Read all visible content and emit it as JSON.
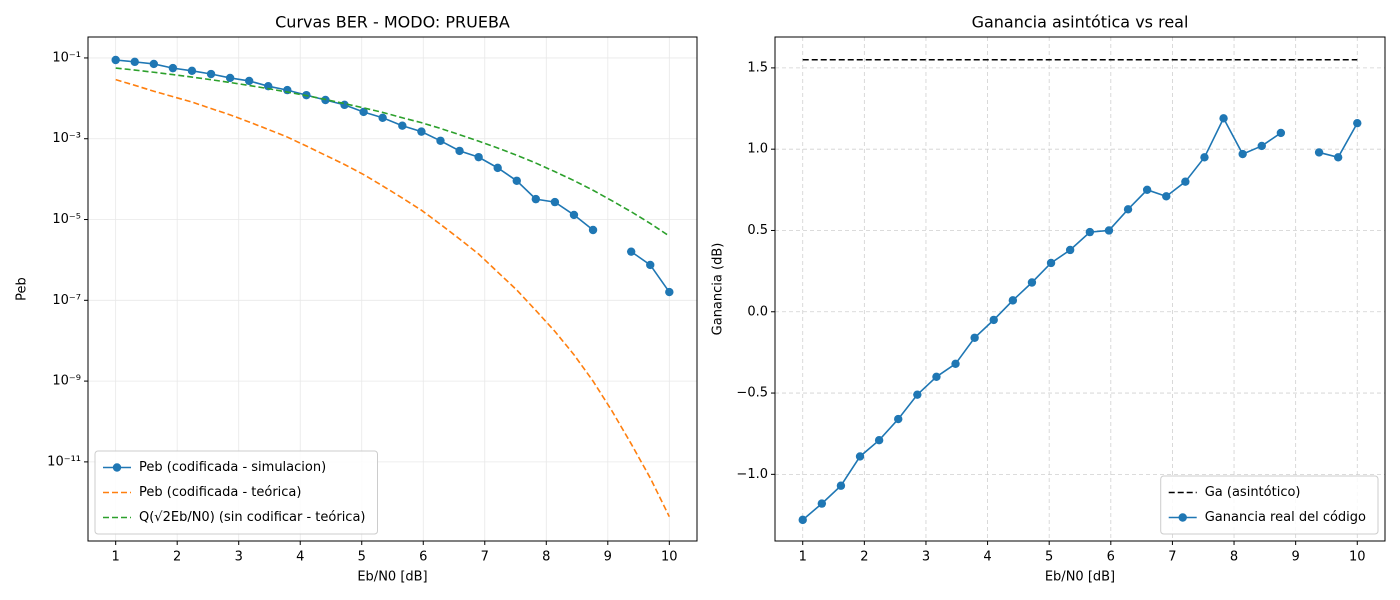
{
  "chart_data": [
    {
      "type": "line",
      "title": "Curvas BER - MODO: PRUEBA",
      "x_label": "Eb/N0 [dB]",
      "y_label": "Peb",
      "yscale": "log",
      "grid": true,
      "grid_style": "solid",
      "legend": "lower left",
      "xlim": [
        0.55,
        10.45
      ],
      "ylim": [
        1.1e-13,
        0.33
      ],
      "xticks": [
        1,
        2,
        3,
        4,
        5,
        6,
        7,
        8,
        9,
        10
      ],
      "yticks": [
        {
          "value": 0.1,
          "label": "10⁻¹"
        },
        {
          "value": 0.001,
          "label": "10⁻³"
        },
        {
          "value": 1e-05,
          "label": "10⁻⁵"
        },
        {
          "value": 1e-07,
          "label": "10⁻⁷"
        },
        {
          "value": 1e-09,
          "label": "10⁻⁹"
        },
        {
          "value": 1e-11,
          "label": "10⁻¹¹"
        }
      ],
      "x": [
        1,
        1.31,
        1.62,
        1.93,
        2.24,
        2.55,
        2.86,
        3.17,
        3.48,
        3.79,
        4.1,
        4.41,
        4.72,
        5.03,
        5.34,
        5.66,
        5.97,
        6.28,
        6.59,
        6.9,
        7.21,
        7.52,
        7.83,
        8.14,
        8.45,
        8.76,
        9.07,
        9.38,
        9.69,
        10
      ],
      "series": [
        {
          "name": "Peb (codificada - simulacion)",
          "color": "#1f77b4",
          "linestyle": "solid",
          "marker": "o",
          "values": [
            0.089,
            0.08,
            0.071,
            0.056,
            0.048,
            0.04,
            0.032,
            0.027,
            0.02,
            0.016,
            0.012,
            0.0091,
            0.0069,
            0.0046,
            0.0033,
            0.0021,
            0.0015,
            0.00089,
            0.0005,
            0.00035,
            0.00019,
            9.1e-05,
            3.2e-05,
            2.7e-05,
            1.3e-05,
            5.5e-06,
            null,
            1.6e-06,
            7.5e-07,
            1.6e-07
          ]
        },
        {
          "name": "Peb (codificada - teórica)",
          "color": "#ff7f0e",
          "linestyle": "dashed",
          "values": [
            0.029,
            0.021,
            0.015,
            0.011,
            0.0081,
            0.0056,
            0.0039,
            0.0026,
            0.0017,
            0.0011,
            0.00066,
            0.00039,
            0.00023,
            0.00013,
            6.8e-05,
            3.4e-05,
            1.7e-05,
            7.6e-06,
            3.3e-06,
            1.4e-06,
            5e-07,
            1.8e-07,
            5.6e-08,
            1.7e-08,
            4.5e-09,
            1e-09,
            1.8e-10,
            2.8e-11,
            4e-12,
            4.4e-13
          ]
        },
        {
          "name": "Q(√2Eb/N0) (sin codificar - teórica)",
          "color": "#2ca02c",
          "linestyle": "dashed",
          "values": [
            0.0563,
            0.0501,
            0.0442,
            0.0387,
            0.0336,
            0.0289,
            0.0247,
            0.0208,
            0.0174,
            0.0143,
            0.0117,
            0.0094,
            0.0074,
            0.0058,
            0.0045,
            0.0033,
            0.0025,
            0.0018,
            0.00126,
            0.00087,
            0.00059,
            0.00039,
            0.00025,
            0.000153,
            9.2e-05,
            5.3e-05,
            2.9e-05,
            1.56e-05,
            8e-06,
            3.9e-06
          ]
        }
      ]
    },
    {
      "type": "line",
      "title": "Ganancia asintótica vs real",
      "x_label": "Eb/N0 [dB]",
      "y_label": "Ganancia (dB)",
      "yscale": "linear",
      "grid": true,
      "grid_style": "dashed",
      "legend": "lower right",
      "xlim": [
        0.55,
        10.45
      ],
      "ylim": [
        -1.41,
        1.69
      ],
      "xticks": [
        1,
        2,
        3,
        4,
        5,
        6,
        7,
        8,
        9,
        10
      ],
      "yticks": [
        {
          "value": -1.0,
          "label": "−1.0"
        },
        {
          "value": -0.5,
          "label": "−0.5"
        },
        {
          "value": 0.0,
          "label": "0.0"
        },
        {
          "value": 0.5,
          "label": "0.5"
        },
        {
          "value": 1.0,
          "label": "1.0"
        },
        {
          "value": 1.5,
          "label": "1.5"
        }
      ],
      "x": [
        1,
        1.31,
        1.62,
        1.93,
        2.24,
        2.55,
        2.86,
        3.17,
        3.48,
        3.79,
        4.1,
        4.41,
        4.72,
        5.03,
        5.34,
        5.66,
        5.97,
        6.28,
        6.59,
        6.9,
        7.21,
        7.52,
        7.83,
        8.14,
        8.45,
        8.76,
        9.07,
        9.38,
        9.69,
        10
      ],
      "series": [
        {
          "name": "Ga (asintótico)",
          "color": "#000000",
          "linestyle": "dashed",
          "x": [
            1,
            10
          ],
          "values": [
            1.55,
            1.55
          ]
        },
        {
          "name": "Ganancia real del código",
          "color": "#1f77b4",
          "linestyle": "solid",
          "marker": "o",
          "values": [
            -1.28,
            -1.18,
            -1.07,
            -0.89,
            -0.79,
            -0.66,
            -0.51,
            -0.4,
            -0.32,
            -0.16,
            -0.05,
            0.07,
            0.18,
            0.3,
            0.38,
            0.49,
            0.5,
            0.63,
            0.75,
            0.71,
            0.8,
            0.95,
            1.19,
            0.97,
            1.02,
            1.1,
            null,
            0.98,
            0.95,
            1.16
          ]
        }
      ]
    }
  ]
}
